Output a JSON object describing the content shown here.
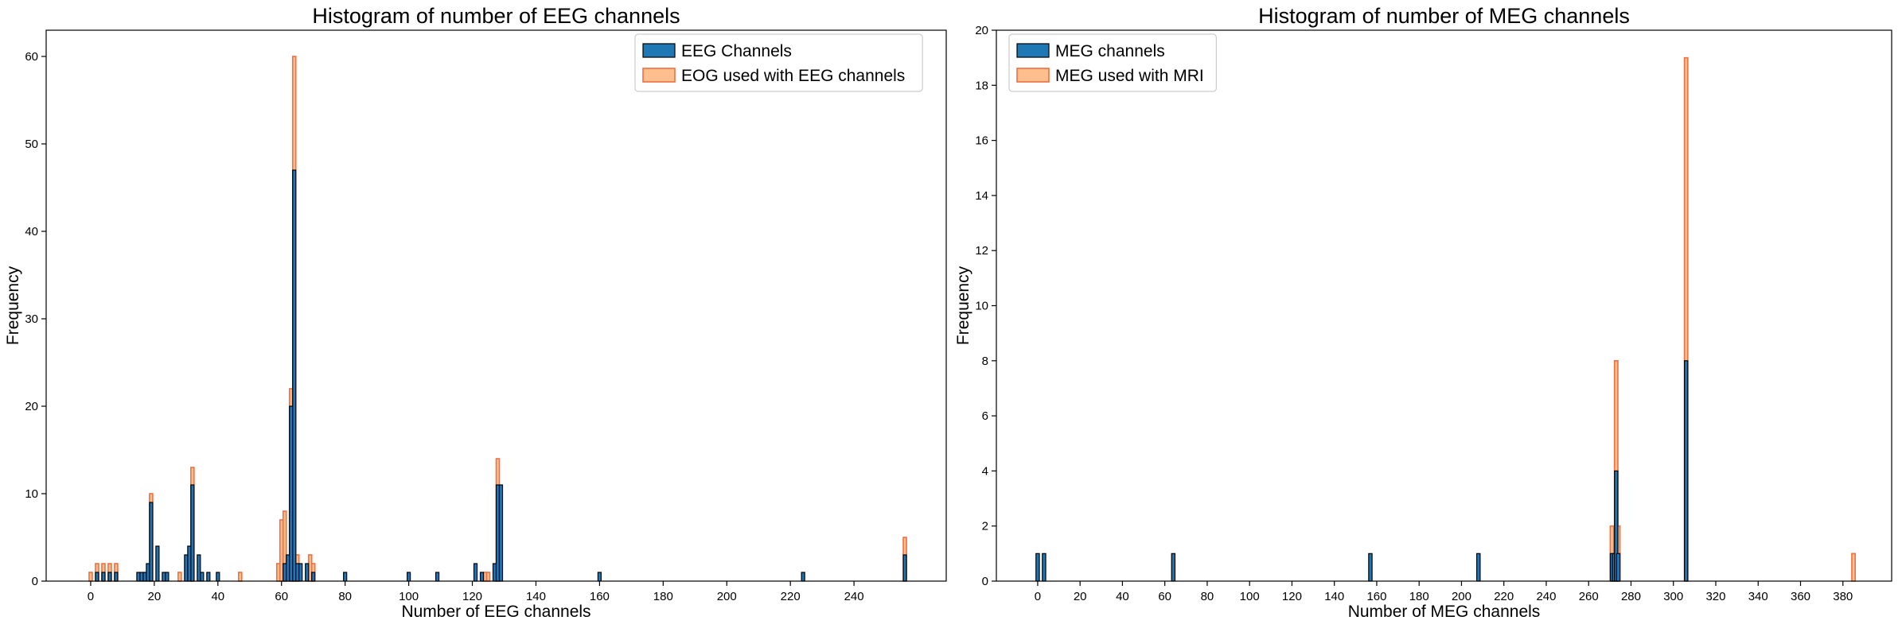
{
  "chart_data": [
    {
      "type": "bar",
      "title": "Histogram of number of EEG channels",
      "xlabel": "Number of EEG channels",
      "ylabel": "Frequency",
      "xlim": [
        -14,
        269
      ],
      "ylim": [
        0,
        63
      ],
      "xticks": [
        0,
        20,
        40,
        60,
        80,
        100,
        120,
        140,
        160,
        180,
        200,
        220,
        240
      ],
      "yticks": [
        0,
        10,
        20,
        30,
        40,
        50,
        60
      ],
      "grid": false,
      "legend_position": "top-right",
      "series": [
        {
          "name": "EEG Channels",
          "color": "#1f77b4",
          "bins": [
            {
              "x": 2,
              "y": 1
            },
            {
              "x": 4,
              "y": 1
            },
            {
              "x": 6,
              "y": 1
            },
            {
              "x": 8,
              "y": 1
            },
            {
              "x": 15,
              "y": 1
            },
            {
              "x": 16,
              "y": 1
            },
            {
              "x": 17,
              "y": 1
            },
            {
              "x": 18,
              "y": 2
            },
            {
              "x": 19,
              "y": 9
            },
            {
              "x": 21,
              "y": 4
            },
            {
              "x": 23,
              "y": 1
            },
            {
              "x": 24,
              "y": 1
            },
            {
              "x": 30,
              "y": 3
            },
            {
              "x": 31,
              "y": 4
            },
            {
              "x": 32,
              "y": 11
            },
            {
              "x": 34,
              "y": 3
            },
            {
              "x": 35,
              "y": 1
            },
            {
              "x": 37,
              "y": 1
            },
            {
              "x": 40,
              "y": 1
            },
            {
              "x": 61,
              "y": 2
            },
            {
              "x": 62,
              "y": 3
            },
            {
              "x": 63,
              "y": 20
            },
            {
              "x": 64,
              "y": 47
            },
            {
              "x": 65,
              "y": 2
            },
            {
              "x": 66,
              "y": 2
            },
            {
              "x": 68,
              "y": 2
            },
            {
              "x": 70,
              "y": 1
            },
            {
              "x": 80,
              "y": 1
            },
            {
              "x": 100,
              "y": 1
            },
            {
              "x": 109,
              "y": 1
            },
            {
              "x": 121,
              "y": 2
            },
            {
              "x": 123,
              "y": 1
            },
            {
              "x": 127,
              "y": 2
            },
            {
              "x": 128,
              "y": 11
            },
            {
              "x": 129,
              "y": 11
            },
            {
              "x": 160,
              "y": 1
            },
            {
              "x": 224,
              "y": 1
            },
            {
              "x": 256,
              "y": 3
            }
          ]
        },
        {
          "name": "EOG used with EEG channels",
          "color": "#ff7f0e",
          "bins": [
            {
              "x": 0,
              "y": 1
            },
            {
              "x": 2,
              "y": 2
            },
            {
              "x": 4,
              "y": 2
            },
            {
              "x": 6,
              "y": 2
            },
            {
              "x": 8,
              "y": 2
            },
            {
              "x": 19,
              "y": 10
            },
            {
              "x": 28,
              "y": 1
            },
            {
              "x": 32,
              "y": 13
            },
            {
              "x": 47,
              "y": 1
            },
            {
              "x": 59,
              "y": 2
            },
            {
              "x": 60,
              "y": 7
            },
            {
              "x": 61,
              "y": 8
            },
            {
              "x": 63,
              "y": 22
            },
            {
              "x": 64,
              "y": 60
            },
            {
              "x": 65,
              "y": 3
            },
            {
              "x": 69,
              "y": 3
            },
            {
              "x": 70,
              "y": 2
            },
            {
              "x": 124,
              "y": 1
            },
            {
              "x": 125,
              "y": 1
            },
            {
              "x": 128,
              "y": 14
            },
            {
              "x": 256,
              "y": 5
            }
          ]
        }
      ]
    },
    {
      "type": "bar",
      "title": "Histogram of number of MEG channels",
      "xlabel": "Number of MEG channels",
      "ylabel": "Frequency",
      "xlim": [
        -19.5,
        403
      ],
      "ylim": [
        0,
        20
      ],
      "xticks": [
        0,
        20,
        40,
        60,
        80,
        100,
        120,
        140,
        160,
        180,
        200,
        220,
        240,
        260,
        280,
        300,
        320,
        340,
        360,
        380
      ],
      "yticks": [
        0,
        2,
        4,
        6,
        8,
        10,
        12,
        14,
        16,
        18,
        20
      ],
      "grid": false,
      "legend_position": "top-left",
      "series": [
        {
          "name": "MEG channels",
          "color": "#1f77b4",
          "bins": [
            {
              "x": 0,
              "y": 1
            },
            {
              "x": 3,
              "y": 1
            },
            {
              "x": 64,
              "y": 1
            },
            {
              "x": 157,
              "y": 1
            },
            {
              "x": 208,
              "y": 1
            },
            {
              "x": 271,
              "y": 1
            },
            {
              "x": 272,
              "y": 1
            },
            {
              "x": 273,
              "y": 4
            },
            {
              "x": 274,
              "y": 1
            },
            {
              "x": 306,
              "y": 8
            }
          ]
        },
        {
          "name": "MEG used with MRI",
          "color": "#ff7f0e",
          "bins": [
            {
              "x": 271,
              "y": 2
            },
            {
              "x": 273,
              "y": 8
            },
            {
              "x": 274,
              "y": 2
            },
            {
              "x": 306,
              "y": 19
            },
            {
              "x": 385,
              "y": 1
            }
          ]
        }
      ]
    }
  ]
}
